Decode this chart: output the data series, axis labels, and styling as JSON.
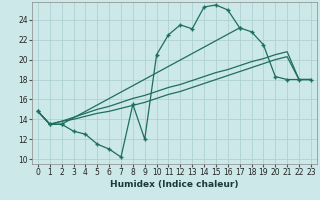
{
  "xlabel": "Humidex (Indice chaleur)",
  "xlim": [
    -0.5,
    23.5
  ],
  "ylim": [
    9.5,
    25.8
  ],
  "xticks": [
    0,
    1,
    2,
    3,
    4,
    5,
    6,
    7,
    8,
    9,
    10,
    11,
    12,
    13,
    14,
    15,
    16,
    17,
    18,
    19,
    20,
    21,
    22,
    23
  ],
  "yticks": [
    10,
    12,
    14,
    16,
    18,
    20,
    22,
    24
  ],
  "bg_color": "#cce8e8",
  "line_color": "#1e6e60",
  "line1_x": [
    0,
    1,
    2,
    3,
    4,
    5,
    6,
    7,
    8,
    9,
    10,
    11,
    12,
    13,
    14,
    15,
    16,
    17
  ],
  "line1_y": [
    14.8,
    13.5,
    13.5,
    12.8,
    12.5,
    11.5,
    11.0,
    10.2,
    15.5,
    12.0,
    20.5,
    22.5,
    23.5,
    23.1,
    25.3,
    25.5,
    25.0,
    23.2
  ],
  "line2_x": [
    0,
    1,
    2,
    17,
    18,
    19,
    20,
    21,
    22,
    23
  ],
  "line2_y": [
    14.8,
    13.5,
    13.5,
    23.2,
    22.8,
    21.5,
    18.3,
    18.0,
    18.0,
    18.0
  ],
  "line3_x": [
    0,
    1,
    2,
    3,
    4,
    5,
    6,
    7,
    8,
    9,
    10,
    11,
    12,
    13,
    14,
    15,
    16,
    17,
    18,
    19,
    20,
    21,
    22,
    23
  ],
  "line3_y": [
    14.8,
    13.5,
    13.8,
    14.0,
    14.3,
    14.6,
    14.8,
    15.1,
    15.4,
    15.7,
    16.1,
    16.5,
    16.8,
    17.2,
    17.6,
    18.0,
    18.4,
    18.8,
    19.2,
    19.6,
    20.0,
    20.3,
    18.0,
    18.0
  ],
  "line4_x": [
    0,
    1,
    2,
    3,
    4,
    5,
    6,
    7,
    8,
    9,
    10,
    11,
    12,
    13,
    14,
    15,
    16,
    17,
    18,
    19,
    20,
    21,
    22,
    23
  ],
  "line4_y": [
    14.8,
    13.5,
    13.8,
    14.2,
    14.6,
    15.0,
    15.3,
    15.7,
    16.1,
    16.4,
    16.8,
    17.2,
    17.5,
    17.9,
    18.3,
    18.7,
    19.0,
    19.4,
    19.8,
    20.1,
    20.5,
    20.8,
    18.0,
    18.0
  ]
}
